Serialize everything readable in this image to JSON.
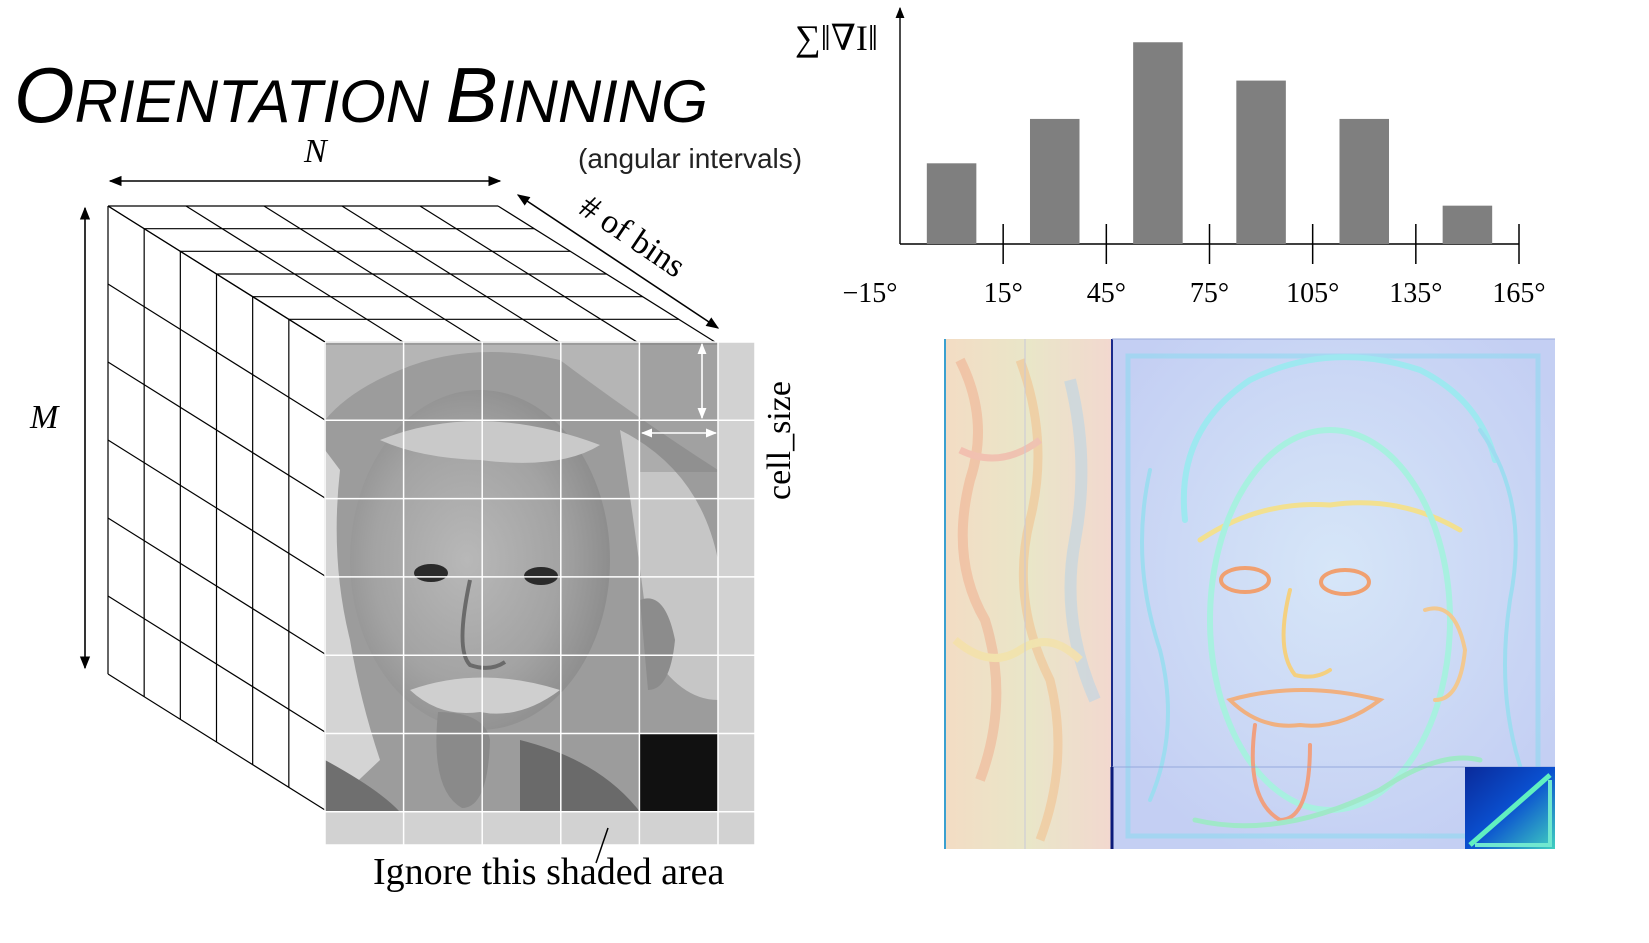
{
  "title": {
    "first_initial": "O",
    "first_rest": "RIENTATION",
    "second_initial": "B",
    "second_rest": "INNING"
  },
  "subtitle": "(angular intervals)",
  "cube": {
    "label_n": "N",
    "label_m": "M",
    "label_bins": "# of bins",
    "label_cell_size": "cell_size",
    "caption": "Ignore this shaded area"
  },
  "histogram": {
    "y_label": "∑‖∇I‖"
  },
  "chart_data": {
    "type": "bar",
    "ylabel": "∑‖∇I‖",
    "xlabel": "",
    "x_ticks": [
      "−15°",
      "15°",
      "45°",
      "75°",
      "105°",
      "135°",
      "165°"
    ],
    "categories": [
      "0°",
      "30°",
      "60°",
      "90°",
      "120°",
      "150°"
    ],
    "values": [
      0.4,
      0.62,
      1.0,
      0.81,
      0.62,
      0.19
    ],
    "xlim": [
      -15,
      165
    ],
    "ylim": [
      0,
      1.15
    ],
    "grid": false,
    "legend": "none"
  },
  "colors": {
    "bar": "#7f7f7f",
    "photo_gray": "#9a9a9a",
    "shaded": "#d0d0d0",
    "heatmap_base": "#c8d4f4"
  }
}
